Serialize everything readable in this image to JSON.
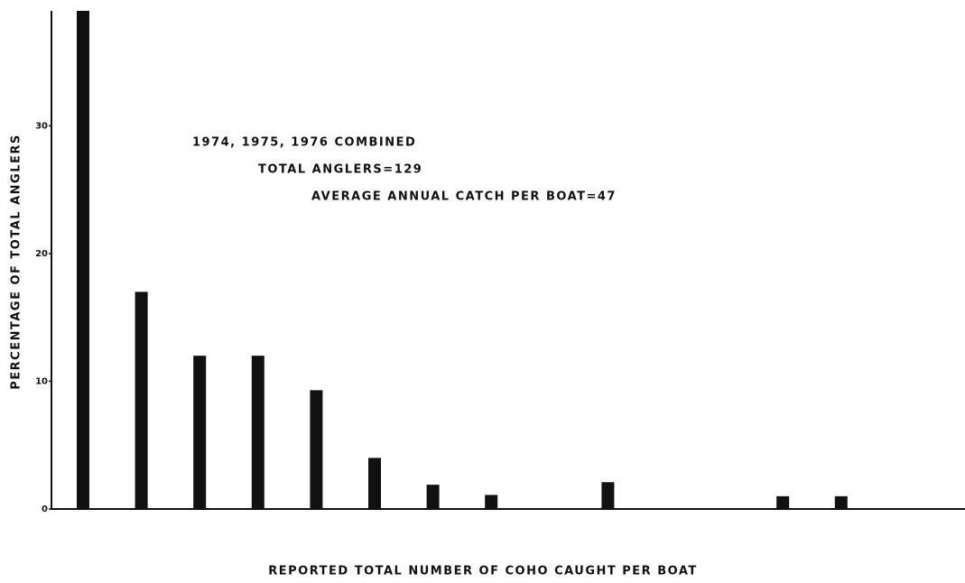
{
  "chart_data": {
    "type": "bar",
    "annotations": [
      "1974, 1975, 1976 COMBINED",
      "TOTAL ANGLERS=129",
      "AVERAGE ANNUAL CATCH PER BOAT=47"
    ],
    "x_label": "REPORTED TOTAL NUMBER OF COHO CAUGHT PER BOAT",
    "y_label": "PERCENTAGE OF TOTAL ANGLERS",
    "categories": [
      null,
      null,
      null,
      null,
      null,
      null,
      null,
      null,
      null,
      null,
      null,
      null,
      null,
      null,
      null
    ],
    "values": [
      39,
      17,
      12,
      12,
      9.3,
      4,
      1.9,
      1.1,
      null,
      2.1,
      null,
      null,
      1,
      1,
      null
    ],
    "color": "#111111",
    "ylim": [
      0,
      39
    ],
    "yticks": [
      0,
      10,
      20,
      30
    ],
    "grid": false
  }
}
